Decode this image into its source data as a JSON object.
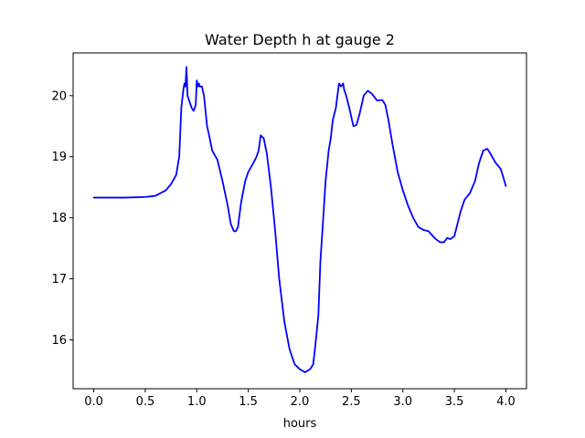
{
  "chart_data": {
    "type": "line",
    "title": "Water Depth h at gauge 2",
    "xlabel": "hours",
    "ylabel": "",
    "xlim": [
      -0.2,
      4.2
    ],
    "ylim": [
      15.2,
      20.7
    ],
    "xticks": [
      0.0,
      0.5,
      1.0,
      1.5,
      2.0,
      2.5,
      3.0,
      3.5,
      4.0
    ],
    "xtick_labels": [
      "0.0",
      "0.5",
      "1.0",
      "1.5",
      "2.0",
      "2.5",
      "3.0",
      "3.5",
      "4.0"
    ],
    "yticks": [
      16,
      17,
      18,
      19,
      20
    ],
    "ytick_labels": [
      "16",
      "17",
      "18",
      "19",
      "20"
    ],
    "grid": false,
    "legend": "none",
    "series": [
      {
        "color": "#0000ff",
        "x": [
          0.0,
          0.3,
          0.5,
          0.6,
          0.7,
          0.75,
          0.8,
          0.83,
          0.85,
          0.87,
          0.88,
          0.89,
          0.9,
          0.91,
          0.92,
          0.95,
          0.97,
          0.99,
          1.0,
          1.01,
          1.02,
          1.03,
          1.05,
          1.07,
          1.1,
          1.12,
          1.15,
          1.2,
          1.25,
          1.3,
          1.33,
          1.36,
          1.38,
          1.4,
          1.43,
          1.47,
          1.5,
          1.55,
          1.58,
          1.6,
          1.62,
          1.65,
          1.68,
          1.72,
          1.76,
          1.8,
          1.85,
          1.9,
          1.95,
          2.0,
          2.05,
          2.1,
          2.13,
          2.15,
          2.18,
          2.2,
          2.22,
          2.25,
          2.28,
          2.3,
          2.32,
          2.35,
          2.38,
          2.4,
          2.42,
          2.43,
          2.45,
          2.48,
          2.52,
          2.55,
          2.58,
          2.62,
          2.66,
          2.7,
          2.75,
          2.8,
          2.83,
          2.86,
          2.9,
          2.95,
          3.0,
          3.05,
          3.1,
          3.15,
          3.2,
          3.25,
          3.28,
          3.32,
          3.36,
          3.4,
          3.43,
          3.46,
          3.5,
          3.53,
          3.56,
          3.6,
          3.65,
          3.7,
          3.74,
          3.78,
          3.82,
          3.85,
          3.9,
          3.95,
          4.0
        ],
        "y": [
          18.33,
          18.33,
          18.34,
          18.36,
          18.45,
          18.55,
          18.7,
          19.0,
          19.8,
          20.1,
          20.2,
          20.15,
          20.47,
          20.0,
          19.95,
          19.8,
          19.75,
          19.85,
          20.25,
          20.15,
          20.2,
          20.15,
          20.15,
          20.0,
          19.5,
          19.35,
          19.1,
          18.95,
          18.6,
          18.2,
          17.9,
          17.78,
          17.78,
          17.85,
          18.25,
          18.6,
          18.75,
          18.9,
          19.0,
          19.1,
          19.35,
          19.3,
          19.05,
          18.5,
          17.8,
          17.0,
          16.3,
          15.85,
          15.6,
          15.52,
          15.47,
          15.52,
          15.6,
          15.9,
          16.4,
          17.3,
          17.8,
          18.6,
          19.1,
          19.3,
          19.6,
          19.8,
          20.2,
          20.15,
          20.2,
          20.1,
          20.0,
          19.8,
          19.5,
          19.52,
          19.7,
          20.0,
          20.08,
          20.03,
          19.92,
          19.93,
          19.85,
          19.6,
          19.2,
          18.75,
          18.45,
          18.2,
          18.0,
          17.85,
          17.8,
          17.78,
          17.72,
          17.65,
          17.6,
          17.6,
          17.67,
          17.65,
          17.7,
          17.9,
          18.1,
          18.3,
          18.4,
          18.6,
          18.9,
          19.1,
          19.13,
          19.05,
          18.9,
          18.8,
          18.52
        ]
      }
    ]
  }
}
